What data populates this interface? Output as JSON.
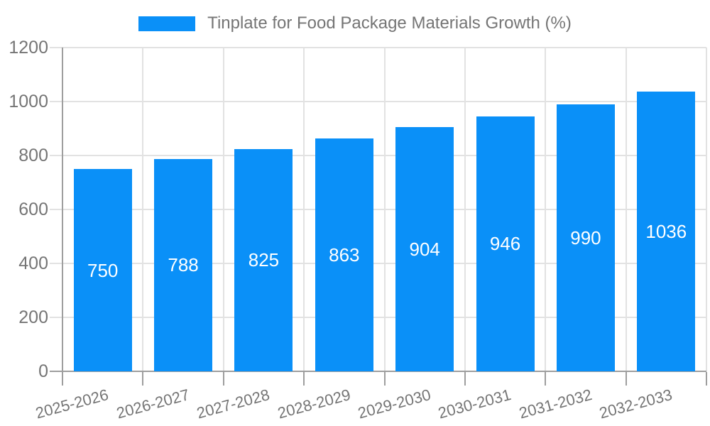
{
  "chart_data": {
    "type": "bar",
    "title": "Tinplate for Food Package Materials Growth (%)",
    "categories": [
      "2025-2026",
      "2026-2027",
      "2027-2028",
      "2028-2029",
      "2029-2030",
      "2030-2031",
      "2031-2032",
      "2032-2033"
    ],
    "values": [
      750,
      788,
      825,
      863,
      904,
      946,
      990,
      1036
    ],
    "xlabel": "",
    "ylabel": "",
    "ylim": [
      0,
      1200
    ],
    "yticks": [
      0,
      200,
      400,
      600,
      800,
      1000,
      1200
    ],
    "grid": true,
    "legend_position": "top-center",
    "bar_label_position": "inside-middle",
    "x_label_rotation_deg": -15,
    "colors": {
      "bar": "#0A90F8",
      "grid": "#E2E2E2",
      "axis": "#9E9E9E",
      "text": "#757575",
      "value_label": "#FFFFFF",
      "background": "#FFFFFF"
    }
  }
}
